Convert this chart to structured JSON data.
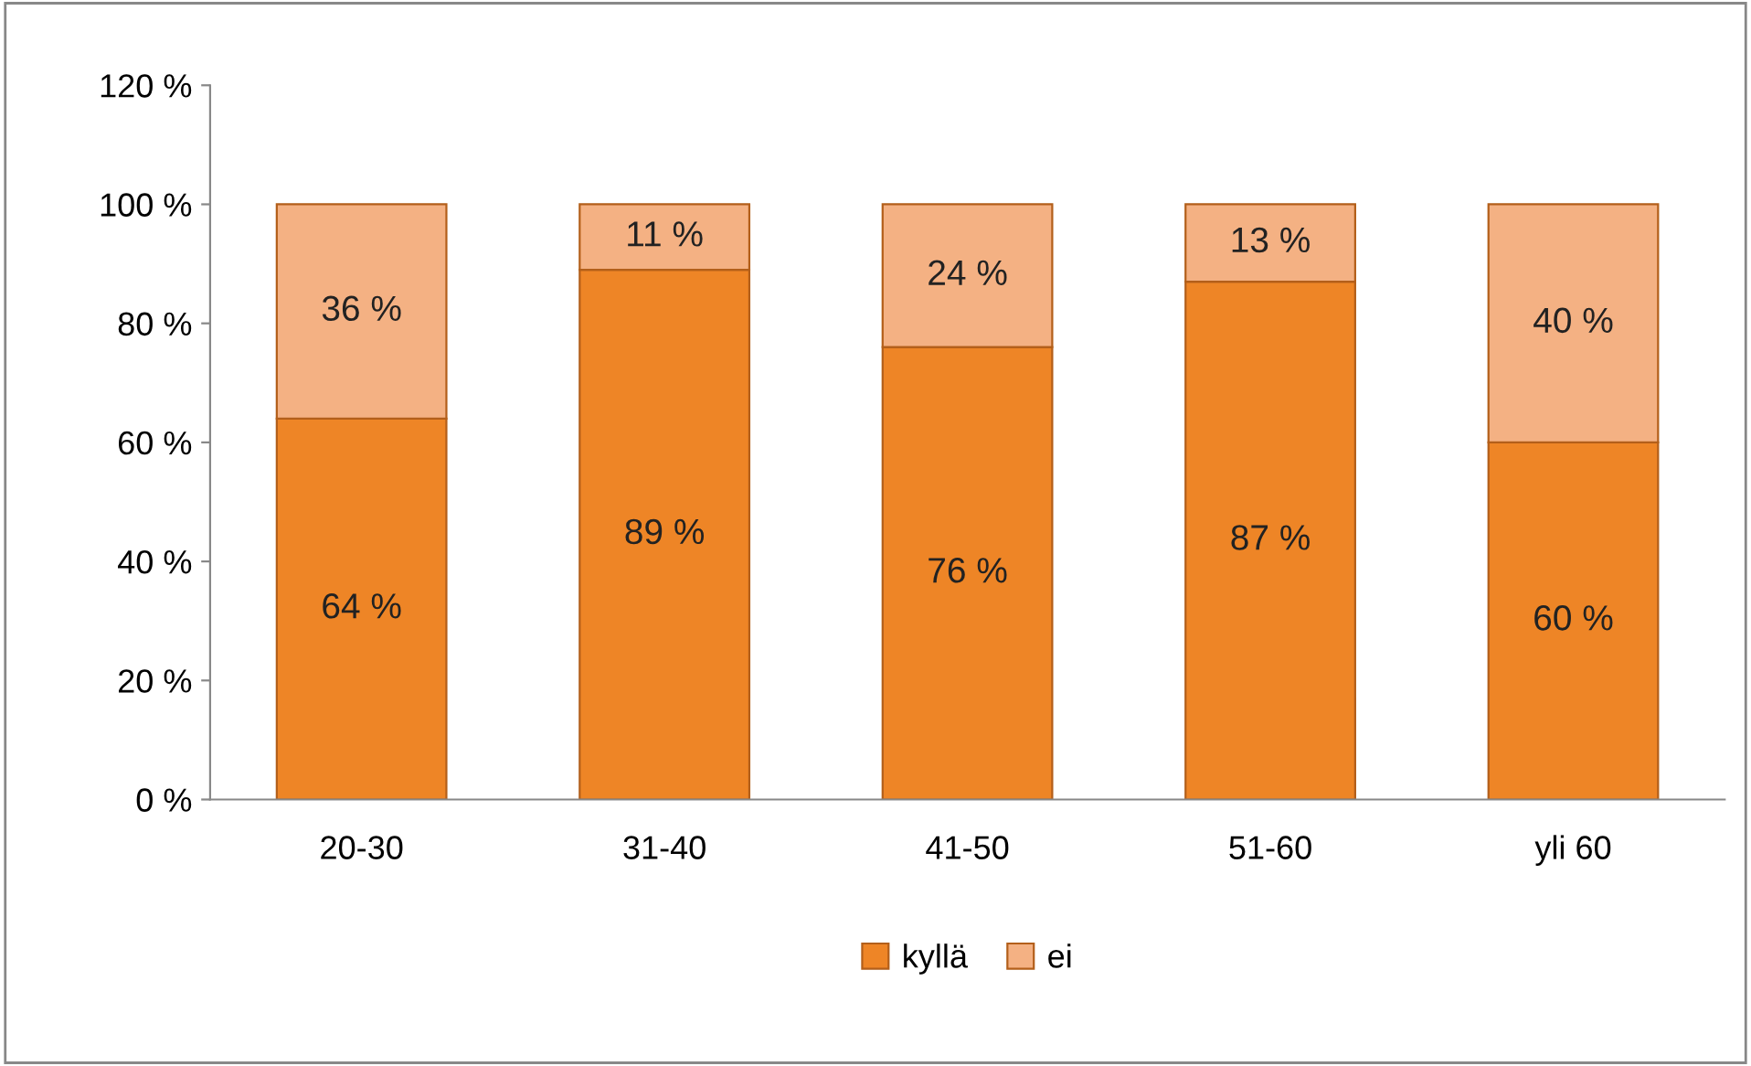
{
  "chart_data": {
    "type": "bar",
    "stacked": true,
    "categories": [
      "20-30",
      "31-40",
      "41-50",
      "51-60",
      "yli 60"
    ],
    "series": [
      {
        "name": "kyllä",
        "color": "#ee8526",
        "values": [
          64,
          89,
          76,
          87,
          60
        ],
        "value_labels": [
          "64 %",
          "89 %",
          "76 %",
          "87 %",
          "60 %"
        ]
      },
      {
        "name": "ei",
        "color": "#f4b183",
        "values": [
          36,
          11,
          24,
          13,
          40
        ],
        "value_labels": [
          "36 %",
          "11 %",
          "24 %",
          "13 %",
          "40 %"
        ]
      }
    ],
    "ylim": [
      0,
      120
    ],
    "yticks": [
      {
        "value": 0,
        "label": "0 %"
      },
      {
        "value": 20,
        "label": "20 %"
      },
      {
        "value": 40,
        "label": "40 %"
      },
      {
        "value": 60,
        "label": "60 %"
      },
      {
        "value": 80,
        "label": "80 %"
      },
      {
        "value": 100,
        "label": "100 %"
      },
      {
        "value": 120,
        "label": "120 %"
      }
    ],
    "grid": false,
    "legend": "bottom"
  }
}
